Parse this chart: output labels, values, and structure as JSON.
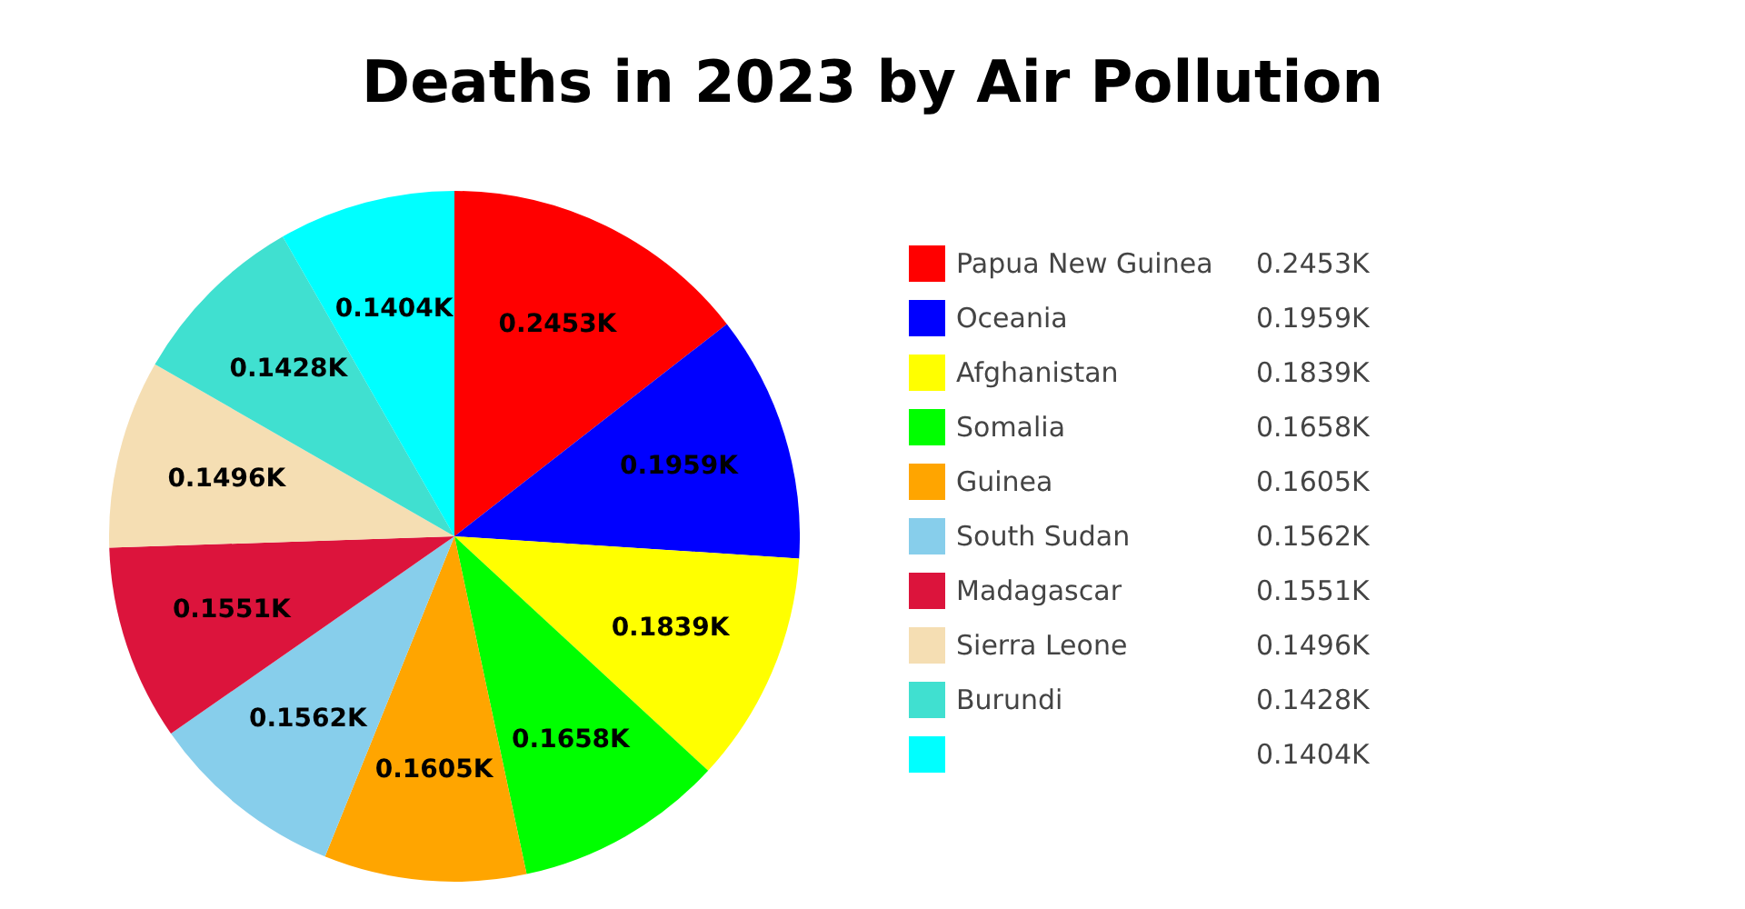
{
  "chart_data": {
    "type": "pie",
    "title": "Deaths in 2023 by Air Pollution",
    "categories": [
      "Papua New Guinea",
      "Oceania",
      "Afghanistan",
      "Somalia",
      "Guinea",
      "South Sudan",
      "Madagascar",
      "Sierra Leone",
      "Burundi",
      null
    ],
    "values": [
      0.2453,
      0.1959,
      0.1839,
      0.1658,
      0.1605,
      0.1562,
      0.1551,
      0.1496,
      0.1428,
      0.1404
    ],
    "value_labels": [
      "0.2453K",
      "0.1959K",
      "0.1839K",
      "0.1658K",
      "0.1605K",
      "0.1562K",
      "0.1551K",
      "0.1496K",
      "0.1428K",
      "0.1404K"
    ],
    "colors": [
      "#ff0000",
      "#0000ff",
      "#ffff00",
      "#00ff00",
      "#ffa500",
      "#87ceeb",
      "#dc143c",
      "#f5deb3",
      "#40e0d0",
      "#00ffff"
    ],
    "legend": "right"
  }
}
